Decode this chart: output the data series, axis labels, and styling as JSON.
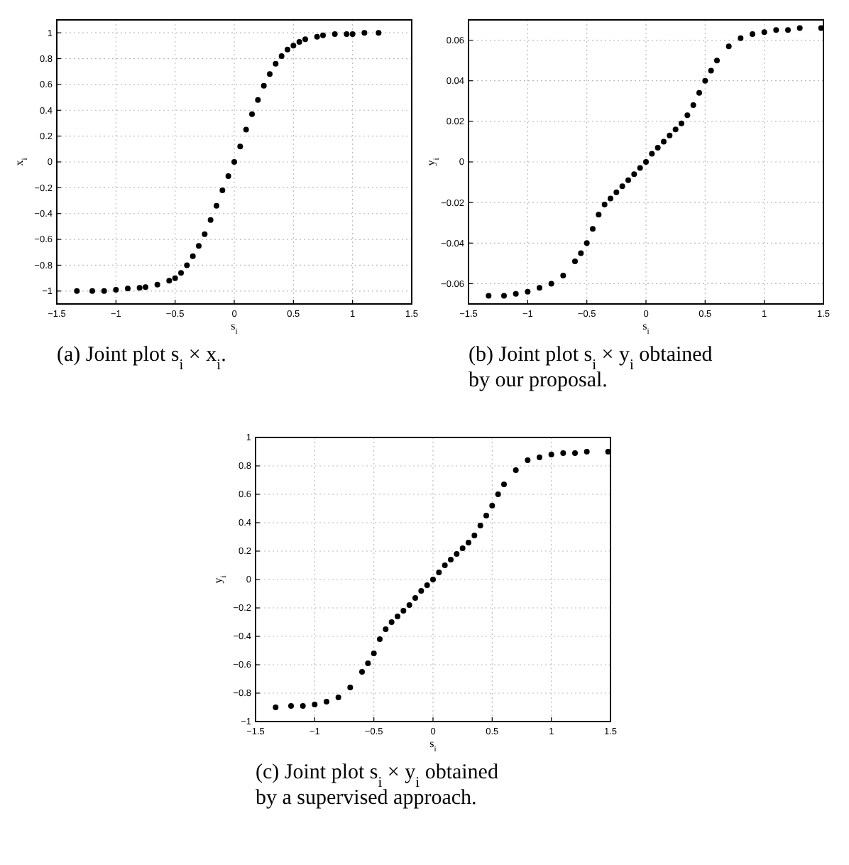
{
  "chart_data": [
    {
      "type": "scatter",
      "xlabel": "s$_{i}$",
      "ylabel": "x$_{i}$",
      "annotations": [
        "(a) Joint plot s$_{i}$ × x$_{i}$."
      ],
      "color": "#000000",
      "marker": "circle",
      "grid": true,
      "x": [
        -1.33,
        -1.2,
        -1.1,
        -1,
        -0.9,
        -0.8,
        -0.75,
        -0.65,
        -0.55,
        -0.5,
        -0.45,
        -0.4,
        -0.35,
        -0.3,
        -0.25,
        -0.2,
        -0.15,
        -0.1,
        -0.05,
        0,
        0.05,
        0.1,
        0.15,
        0.2,
        0.25,
        0.3,
        0.35,
        0.4,
        0.45,
        0.5,
        0.55,
        0.6,
        0.7,
        0.75,
        0.85,
        0.95,
        1,
        1.1,
        1.22
      ],
      "values": [
        -1,
        -1,
        -1,
        -0.99,
        -0.98,
        -0.975,
        -0.97,
        -0.95,
        -0.92,
        -0.9,
        -0.86,
        -0.8,
        -0.73,
        -0.65,
        -0.56,
        -0.45,
        -0.34,
        -0.22,
        -0.11,
        0,
        0.12,
        0.25,
        0.37,
        0.48,
        0.59,
        0.68,
        0.76,
        0.82,
        0.87,
        0.9,
        0.93,
        0.95,
        0.97,
        0.98,
        0.99,
        0.99,
        0.99,
        1,
        1
      ],
      "xlim": [
        -1.5,
        1.5
      ],
      "xticks": [
        -1.5,
        -1,
        -0.5,
        0,
        0.5,
        1,
        1.5
      ],
      "ylim": [
        -1.1,
        1.1
      ],
      "yticks": [
        -1,
        -0.8,
        -0.6,
        -0.4,
        -0.2,
        0,
        0.2,
        0.4,
        0.6,
        0.8,
        1
      ]
    },
    {
      "type": "scatter",
      "xlabel": "s$_{i}$",
      "ylabel": "y$_{i}$",
      "annotations": [
        "(b) Joint plot s$_{i}$ × y$_{i}$ obtained by our proposal."
      ],
      "color": "#000000",
      "marker": "circle",
      "grid": true,
      "x": [
        -1.33,
        -1.2,
        -1.1,
        -1,
        -0.9,
        -0.8,
        -0.7,
        -0.6,
        -0.55,
        -0.5,
        -0.45,
        -0.4,
        -0.35,
        -0.3,
        -0.25,
        -0.2,
        -0.15,
        -0.1,
        -0.05,
        0,
        0.05,
        0.1,
        0.15,
        0.2,
        0.25,
        0.3,
        0.35,
        0.4,
        0.45,
        0.5,
        0.55,
        0.6,
        0.7,
        0.8,
        0.9,
        1,
        1.1,
        1.2,
        1.3,
        1.48
      ],
      "values": [
        -0.066,
        -0.066,
        -0.065,
        -0.064,
        -0.062,
        -0.06,
        -0.056,
        -0.049,
        -0.045,
        -0.04,
        -0.033,
        -0.026,
        -0.021,
        -0.018,
        -0.015,
        -0.012,
        -0.009,
        -0.006,
        -0.003,
        0,
        0.004,
        0.007,
        0.01,
        0.013,
        0.016,
        0.019,
        0.023,
        0.028,
        0.034,
        0.04,
        0.045,
        0.05,
        0.057,
        0.061,
        0.063,
        0.064,
        0.065,
        0.065,
        0.066,
        0.066
      ],
      "xlim": [
        -1.5,
        1.5
      ],
      "xticks": [
        -1.5,
        -1,
        -0.5,
        0,
        0.5,
        1,
        1.5
      ],
      "ylim": [
        -0.07,
        0.07
      ],
      "yticks": [
        -0.06,
        -0.04,
        -0.02,
        0,
        0.02,
        0.04,
        0.06
      ]
    },
    {
      "type": "scatter",
      "xlabel": "s$_{i}$",
      "ylabel": "y$_{i}$",
      "annotations": [
        "(c) Joint plot s$_{i}$ × y$_{i}$ obtained by a supervised approach."
      ],
      "color": "#000000",
      "marker": "circle",
      "grid": true,
      "x": [
        -1.33,
        -1.2,
        -1.1,
        -1,
        -0.9,
        -0.8,
        -0.7,
        -0.6,
        -0.55,
        -0.5,
        -0.45,
        -0.4,
        -0.35,
        -0.3,
        -0.25,
        -0.2,
        -0.15,
        -0.1,
        -0.05,
        0,
        0.05,
        0.1,
        0.15,
        0.2,
        0.25,
        0.3,
        0.35,
        0.4,
        0.45,
        0.5,
        0.55,
        0.6,
        0.7,
        0.8,
        0.9,
        1,
        1.1,
        1.2,
        1.3,
        1.48
      ],
      "values": [
        -0.9,
        -0.89,
        -0.89,
        -0.88,
        -0.86,
        -0.83,
        -0.76,
        -0.65,
        -0.59,
        -0.52,
        -0.42,
        -0.35,
        -0.3,
        -0.26,
        -0.22,
        -0.18,
        -0.13,
        -0.08,
        -0.04,
        0,
        0.05,
        0.1,
        0.14,
        0.18,
        0.22,
        0.26,
        0.31,
        0.38,
        0.45,
        0.52,
        0.6,
        0.67,
        0.77,
        0.84,
        0.86,
        0.88,
        0.89,
        0.89,
        0.9,
        0.9
      ],
      "xlim": [
        -1.5,
        1.5
      ],
      "xticks": [
        -1.5,
        -1,
        -0.5,
        0,
        0.5,
        1,
        1.5
      ],
      "ylim": [
        -1,
        1
      ],
      "yticks": [
        -1,
        -0.8,
        -0.6,
        -0.4,
        -0.2,
        0,
        0.2,
        0.4,
        0.6,
        0.8,
        1
      ]
    }
  ]
}
